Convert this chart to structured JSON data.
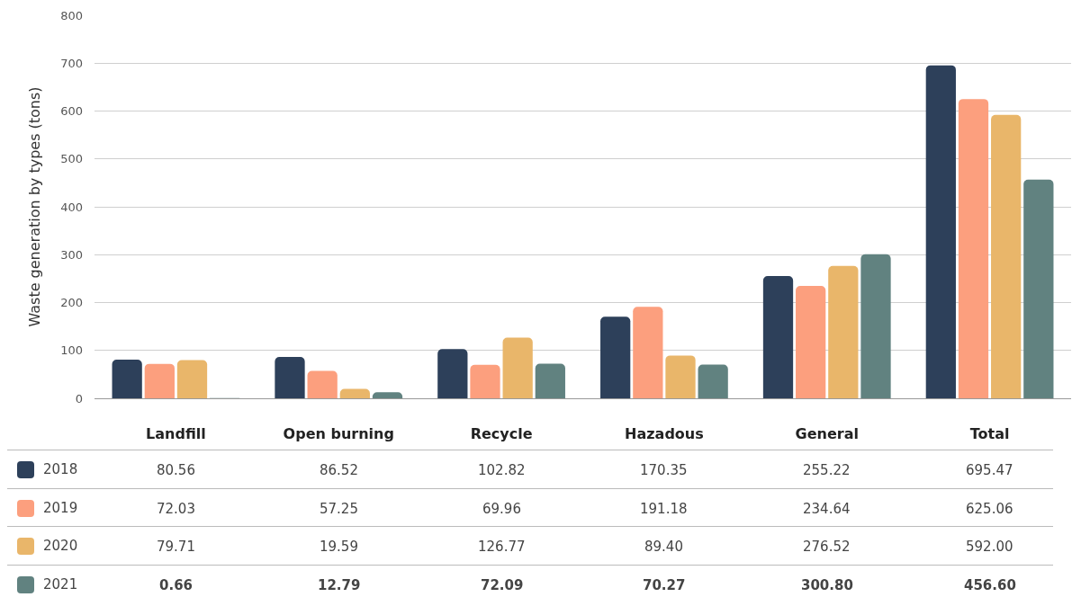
{
  "chart_data": {
    "type": "bar",
    "ylabel": "Waste generation by types (tons)",
    "categories": [
      "Landfill",
      "Open burning",
      "Recycle",
      "Hazadous",
      "General",
      "Total"
    ],
    "series": [
      {
        "name": "2018",
        "color": "#2d405a",
        "values": [
          80.56,
          86.52,
          102.82,
          170.35,
          255.22,
          695.47
        ],
        "value_labels": [
          "80.56",
          "86.52",
          "102.82",
          "170.35",
          "255.22",
          "695.47"
        ]
      },
      {
        "name": "2019",
        "color": "#fc9f7e",
        "values": [
          72.03,
          57.25,
          69.96,
          191.18,
          234.64,
          625.06
        ],
        "value_labels": [
          "72.03",
          "57.25",
          "69.96",
          "191.18",
          "234.64",
          "625.06"
        ]
      },
      {
        "name": "2020",
        "color": "#e9b66a",
        "values": [
          79.71,
          19.59,
          126.77,
          89.4,
          276.52,
          592
        ],
        "value_labels": [
          "79.71",
          "19.59",
          "126.77",
          "89.40",
          "276.52",
          "592.00"
        ]
      },
      {
        "name": "2021",
        "color": "#618280",
        "values": [
          0.66,
          12.79,
          72.09,
          70.27,
          300.8,
          456.6
        ],
        "value_labels": [
          "0.66",
          "12.79",
          "72.09",
          "70.27",
          "300.80",
          "456.60"
        ]
      }
    ],
    "ylim": [
      0,
      800
    ],
    "yticks": [
      0,
      100,
      200,
      300,
      400,
      500,
      600,
      700,
      800
    ],
    "grid": "y",
    "legend": "bottom left"
  }
}
